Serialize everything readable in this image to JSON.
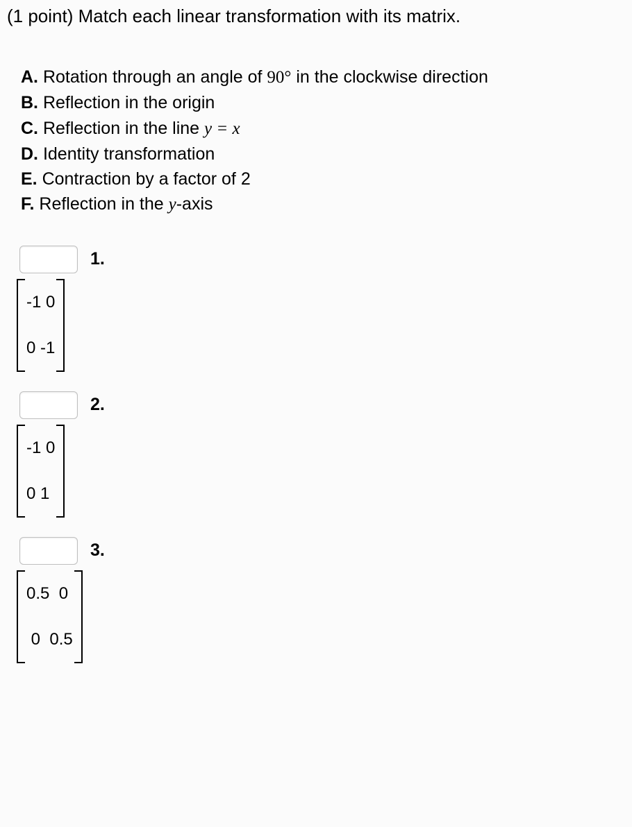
{
  "prompt": "(1 point) Match each linear transformation with its matrix.",
  "options": [
    {
      "letter": "A.",
      "text_before": " Rotation through an angle of ",
      "math": "90°",
      "text_after": " in the clockwise direction"
    },
    {
      "letter": "B.",
      "text_before": " Reflection in the origin",
      "math": "",
      "text_after": ""
    },
    {
      "letter": "C.",
      "text_before": " Reflection in the line ",
      "math": "y = x",
      "text_after": ""
    },
    {
      "letter": "D.",
      "text_before": " Identity transformation",
      "math": "",
      "text_after": ""
    },
    {
      "letter": "E.",
      "text_before": " Contraction by a factor of 2",
      "math": "",
      "text_after": ""
    },
    {
      "letter": "F.",
      "text_before": " Reflection in the ",
      "math": "y",
      "text_after": "-axis"
    }
  ],
  "questions": [
    {
      "number": "1.",
      "matrix": {
        "row1": "-1 0",
        "row2": "0 -1"
      }
    },
    {
      "number": "2.",
      "matrix": {
        "row1": "-1 0",
        "row2": "0 1"
      }
    },
    {
      "number": "3.",
      "matrix": {
        "row1": "0.5  0",
        "row2": " 0  0.5"
      }
    }
  ]
}
